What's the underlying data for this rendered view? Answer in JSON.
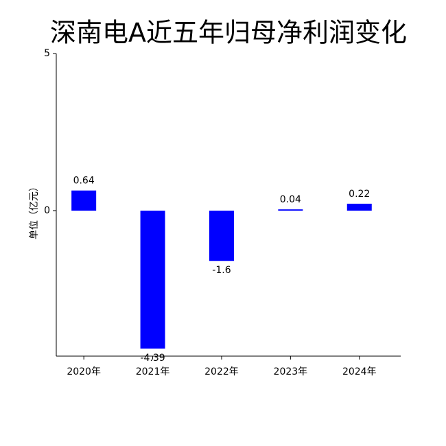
{
  "chart_data": {
    "type": "bar",
    "title": "深南电A近五年归母净利润变化",
    "y_label": "单位（亿元）",
    "categories": [
      "2020年",
      "2021年",
      "2022年",
      "2023年",
      "2024年"
    ],
    "values": [
      0.64,
      -4.39,
      -1.6,
      0.04,
      0.22
    ],
    "color": "#0000ff",
    "ylim": [
      -4.63,
      5
    ],
    "yticks": [
      0,
      5
    ],
    "grid": false
  }
}
